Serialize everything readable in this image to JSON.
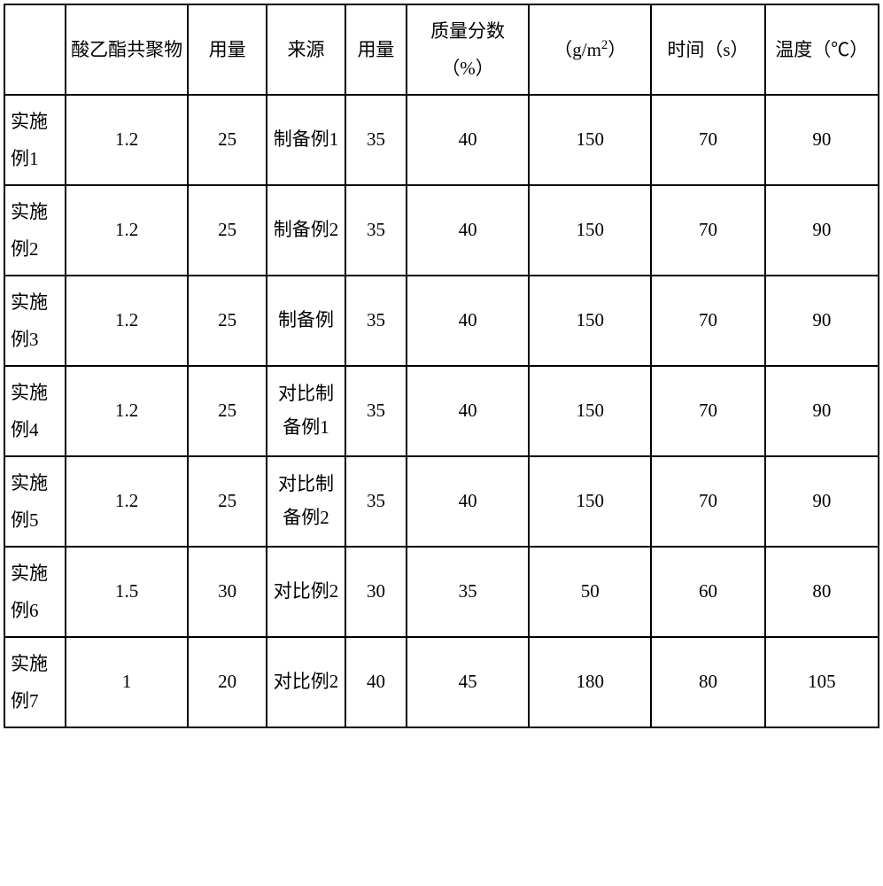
{
  "table": {
    "columns": [
      {
        "label": "",
        "width": "7%"
      },
      {
        "label": "酸乙酯共聚物",
        "width": "14%"
      },
      {
        "label": "用量",
        "width": "9%"
      },
      {
        "label": "来源",
        "width": "9%"
      },
      {
        "label": "用量",
        "width": "7%"
      },
      {
        "label": "质量分数（%）",
        "width": "14%"
      },
      {
        "label_html": "（g/m²）",
        "width": "14%"
      },
      {
        "label": "时间（s）",
        "width": "13%"
      },
      {
        "label": "温度（℃）",
        "width": "13%"
      }
    ],
    "rows": [
      {
        "label": "实施例1",
        "cells": [
          "1.2",
          "25",
          "制备例1",
          "35",
          "40",
          "150",
          "70",
          "90"
        ]
      },
      {
        "label": "实施例2",
        "cells": [
          "1.2",
          "25",
          "制备例2",
          "35",
          "40",
          "150",
          "70",
          "90"
        ]
      },
      {
        "label": "实施例3",
        "cells": [
          "1.2",
          "25",
          "制备例",
          "35",
          "40",
          "150",
          "70",
          "90"
        ]
      },
      {
        "label": "实施例4",
        "cells": [
          "1.2",
          "25",
          "对比制备例1",
          "35",
          "40",
          "150",
          "70",
          "90"
        ]
      },
      {
        "label": "实施例5",
        "cells": [
          "1.2",
          "25",
          "对比制备例2",
          "35",
          "40",
          "150",
          "70",
          "90"
        ]
      },
      {
        "label": "实施例6",
        "cells": [
          "1.5",
          "30",
          "对比例2",
          "30",
          "35",
          "50",
          "60",
          "80"
        ]
      },
      {
        "label": "实施例7",
        "cells": [
          "1",
          "20",
          "对比例2",
          "40",
          "45",
          "180",
          "80",
          "105"
        ]
      }
    ],
    "font_size": 21,
    "border_color": "#000000",
    "background_color": "#ffffff",
    "text_color": "#000000"
  }
}
